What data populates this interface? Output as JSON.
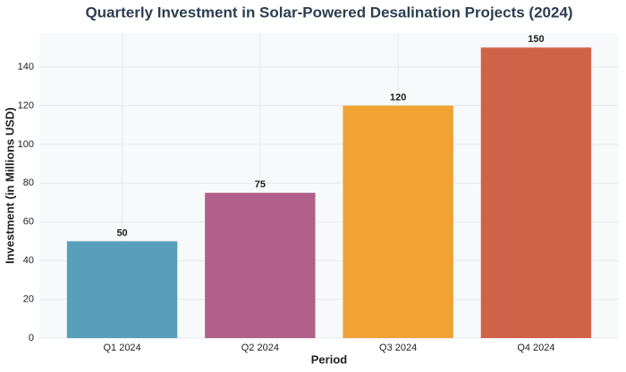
{
  "chart_data": {
    "type": "bar",
    "title": "Quarterly Investment in Solar-Powered Desalination Projects (2024)",
    "x_label": "Period",
    "y_label": "Investment (in Millions USD)",
    "categories": [
      "Q1 2024",
      "Q2 2024",
      "Q3 2024",
      "Q4 2024"
    ],
    "values": [
      50,
      75,
      120,
      150
    ],
    "colors": [
      "#579fbb",
      "#b0608a",
      "#f0a232",
      "#d0624a"
    ],
    "ylim": [
      0,
      157.5
    ],
    "yticks": [
      0,
      20,
      40,
      60,
      80,
      100,
      120,
      140
    ],
    "grid": true
  }
}
